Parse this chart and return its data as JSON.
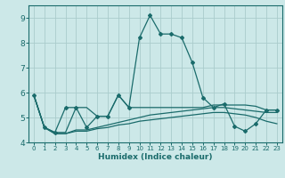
{
  "title": "",
  "xlabel": "Humidex (Indice chaleur)",
  "bg_color": "#cce8e8",
  "grid_color": "#aacccc",
  "line_color": "#1a6b6b",
  "xlim": [
    -0.5,
    23.5
  ],
  "ylim": [
    4.0,
    9.5
  ],
  "yticks": [
    4,
    5,
    6,
    7,
    8,
    9
  ],
  "xticks": [
    0,
    1,
    2,
    3,
    4,
    5,
    6,
    7,
    8,
    9,
    10,
    11,
    12,
    13,
    14,
    15,
    16,
    17,
    18,
    19,
    20,
    21,
    22,
    23
  ],
  "line1_x": [
    0,
    1,
    2,
    3,
    4,
    5,
    6,
    7,
    8,
    9,
    10,
    11,
    12,
    13,
    14,
    15,
    16,
    17,
    18,
    19,
    20,
    21,
    22,
    23
  ],
  "line1_y": [
    5.9,
    4.6,
    4.4,
    5.4,
    5.4,
    4.6,
    5.05,
    5.05,
    5.9,
    5.4,
    8.2,
    9.1,
    8.35,
    8.35,
    8.2,
    7.2,
    5.8,
    5.4,
    5.55,
    4.65,
    4.45,
    4.75,
    5.3,
    5.3
  ],
  "line2_x": [
    0,
    1,
    2,
    3,
    4,
    5,
    6,
    7,
    8,
    9,
    10,
    11,
    12,
    13,
    14,
    15,
    16,
    17,
    18,
    19,
    20,
    21,
    22,
    23
  ],
  "line2_y": [
    5.9,
    4.6,
    4.4,
    4.4,
    5.4,
    5.4,
    5.05,
    5.05,
    5.9,
    5.4,
    5.4,
    5.4,
    5.4,
    5.4,
    5.4,
    5.4,
    5.4,
    5.5,
    5.5,
    5.5,
    5.5,
    5.45,
    5.3,
    5.3
  ],
  "line3_x": [
    0,
    1,
    2,
    3,
    4,
    5,
    6,
    7,
    8,
    9,
    10,
    11,
    12,
    13,
    14,
    15,
    16,
    17,
    18,
    19,
    20,
    21,
    22,
    23
  ],
  "line3_y": [
    5.9,
    4.6,
    4.35,
    4.35,
    4.5,
    4.5,
    4.6,
    4.7,
    4.8,
    4.9,
    5.0,
    5.1,
    5.15,
    5.2,
    5.25,
    5.3,
    5.35,
    5.4,
    5.4,
    5.35,
    5.3,
    5.25,
    5.2,
    5.2
  ],
  "line4_x": [
    0,
    1,
    2,
    3,
    4,
    5,
    6,
    7,
    8,
    9,
    10,
    11,
    12,
    13,
    14,
    15,
    16,
    17,
    18,
    19,
    20,
    21,
    22,
    23
  ],
  "line4_y": [
    5.9,
    4.6,
    4.35,
    4.35,
    4.45,
    4.45,
    4.55,
    4.6,
    4.7,
    4.75,
    4.85,
    4.9,
    4.95,
    5.0,
    5.05,
    5.1,
    5.15,
    5.2,
    5.2,
    5.15,
    5.1,
    5.0,
    4.85,
    4.75
  ]
}
